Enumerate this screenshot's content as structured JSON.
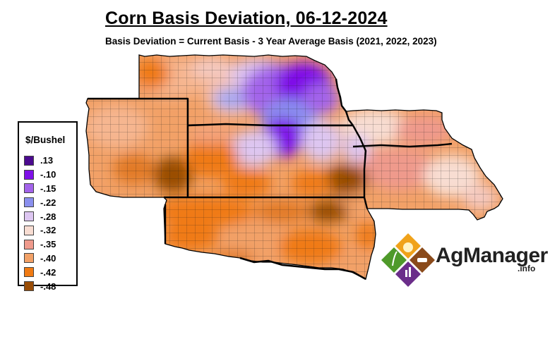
{
  "title": "Corn Basis Deviation, 06-12-2024",
  "subtitle": "Basis Deviation = Current Basis - 3 Year Average Basis (2021, 2022, 2023)",
  "legend": {
    "title": "$/Bushel",
    "items": [
      {
        "label": ".13",
        "color": "#4b0a8f"
      },
      {
        "label": "-.10",
        "color": "#7f10e8"
      },
      {
        "label": "-.15",
        "color": "#a363ea"
      },
      {
        "label": "-.22",
        "color": "#8a8fee"
      },
      {
        "label": "-.28",
        "color": "#ddc6f1"
      },
      {
        "label": "-.32",
        "color": "#f8ddd2"
      },
      {
        "label": "-.35",
        "color": "#ef9a8c"
      },
      {
        "label": "-.40",
        "color": "#f2a167"
      },
      {
        "label": "-.42",
        "color": "#f07a12"
      },
      {
        "label": "-.48",
        "color": "#9a4d06"
      }
    ]
  },
  "logo": {
    "name": "AgManager",
    "suffix": ".info",
    "icon": "agmanager-diamond-logo"
  }
}
